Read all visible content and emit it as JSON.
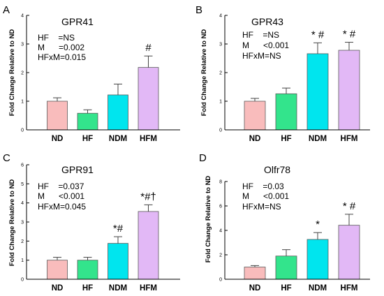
{
  "colors": [
    "#f9bcbc",
    "#33e48c",
    "#00e5ee",
    "#e2b8f6"
  ],
  "chart_data": [
    {
      "type": "bar",
      "panel": "A",
      "title": "GPR41",
      "categories": [
        "ND",
        "HF",
        "NDM",
        "HFM"
      ],
      "values": [
        1.0,
        0.58,
        1.22,
        2.18
      ],
      "errors": [
        0.12,
        0.12,
        0.38,
        0.4
      ],
      "ylabel": "Fold Change Relative to ND",
      "ylim": [
        0,
        4
      ],
      "yticks": [
        "0",
        "1",
        "2",
        "3",
        "4"
      ],
      "stats": [
        "HF    =NS",
        "M      =0.002",
        "HFxM=0.015"
      ],
      "significance": [
        "",
        "",
        "",
        "#"
      ]
    },
    {
      "type": "bar",
      "panel": "B",
      "title": "GPR43",
      "categories": [
        "ND",
        "HF",
        "NDM",
        "HFM"
      ],
      "values": [
        1.0,
        1.26,
        2.66,
        2.78
      ],
      "errors": [
        0.1,
        0.2,
        0.38,
        0.28
      ],
      "ylabel": "Fold Change Relative to ND",
      "ylim": [
        0,
        4
      ],
      "yticks": [
        "0",
        "1",
        "2",
        "3",
        "4"
      ],
      "stats": [
        "HF    =NS",
        "M      <0.001",
        "HFxM=NS"
      ],
      "significance": [
        "",
        "",
        "* #",
        "* #"
      ]
    },
    {
      "type": "bar",
      "panel": "C",
      "title": "GPR91",
      "categories": [
        "ND",
        "HF",
        "NDM",
        "HFM"
      ],
      "values": [
        1.0,
        1.0,
        1.88,
        3.55
      ],
      "errors": [
        0.15,
        0.15,
        0.35,
        0.35
      ],
      "ylabel": "Fold Change Relative to ND",
      "ylim": [
        0,
        6
      ],
      "yticks": [
        "0",
        "1",
        "2",
        "3",
        "4",
        "5",
        "6"
      ],
      "stats": [
        "HF    =0.037",
        "M      <0.001",
        "HFxM=0.045"
      ],
      "significance": [
        "",
        "",
        "*#",
        "*#†"
      ]
    },
    {
      "type": "bar",
      "panel": "D",
      "title": "Olfr78",
      "categories": [
        "ND",
        "HF",
        "NDM",
        "HFM"
      ],
      "values": [
        1.0,
        1.9,
        3.26,
        4.42
      ],
      "errors": [
        0.12,
        0.52,
        0.56,
        0.9
      ],
      "ylabel": "Fold Change Relative to ND",
      "ylim": [
        0,
        8
      ],
      "yticks": [
        "0",
        "2",
        "4",
        "6",
        "8"
      ],
      "stats": [
        "HF    =0.03",
        "M      <0.001",
        "HFxM=NS"
      ],
      "significance": [
        "",
        "",
        "*",
        "* #"
      ]
    }
  ]
}
